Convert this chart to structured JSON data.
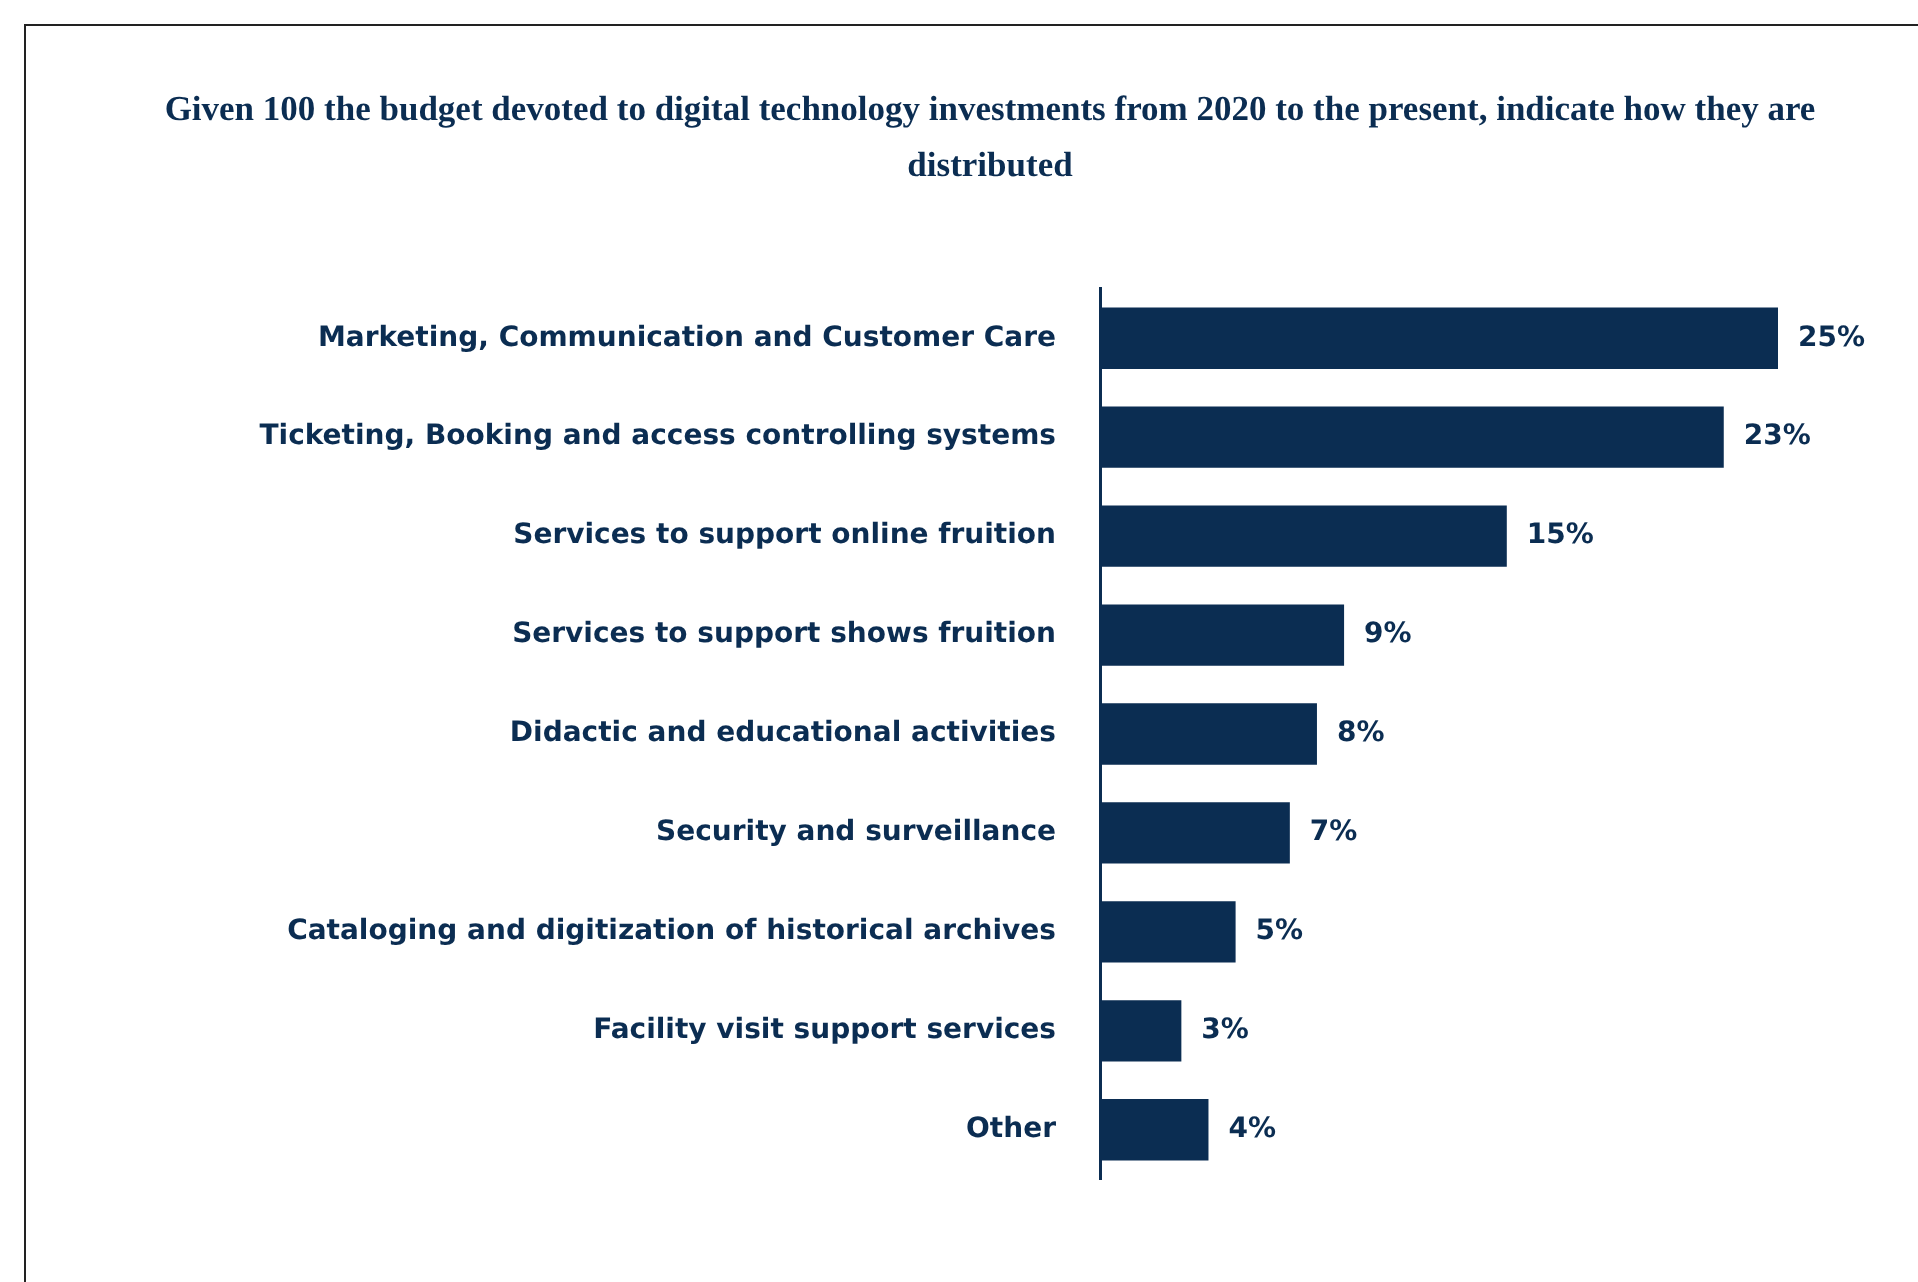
{
  "chart_data": {
    "type": "bar",
    "orientation": "horizontal",
    "title": "Given 100 the budget devoted to digital technology investments from 2020 to the present, indicate how they are distributed",
    "categories": [
      "Marketing, Communication and Customer Care",
      "Ticketing, Booking and access controlling systems",
      "Services to support online fruition",
      "Services to support shows fruition",
      "Didactic and educational activities",
      "Security and surveillance",
      "Cataloging and digitization of historical archives",
      "Facility visit support services",
      "Other"
    ],
    "values": [
      25,
      23,
      15,
      9,
      8,
      7,
      5,
      3,
      4
    ],
    "value_labels": [
      "25%",
      "23%",
      "15%",
      "9%",
      "8%",
      "7%",
      "5%",
      "3%",
      "4%"
    ],
    "color": "#0b2d52",
    "tick_labels": "y"
  }
}
